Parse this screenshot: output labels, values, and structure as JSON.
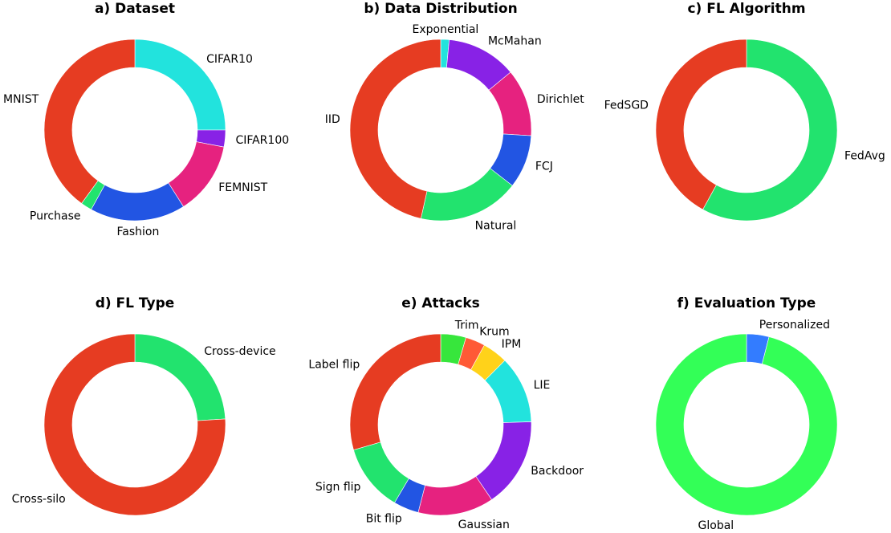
{
  "chart_data": [
    {
      "type": "pie",
      "title": "a) Dataset",
      "categories": [
        "CIFAR10",
        "CIFAR100",
        "FEMNIST",
        "Fashion",
        "Purchase",
        "MNIST"
      ],
      "values": [
        25.0,
        3.0,
        13.0,
        17.0,
        2.0,
        40.0
      ],
      "colors": [
        "#22e3dd",
        "#8822e6",
        "#e6227f",
        "#2255e3",
        "#22e36e",
        "#e63c22"
      ]
    },
    {
      "type": "pie",
      "title": "b) Data Distribution",
      "categories": [
        "Exponential",
        "McMahan",
        "Dirichlet",
        "FCJ",
        "Natural",
        "IID"
      ],
      "values": [
        1.5,
        12.5,
        12.0,
        9.5,
        18.0,
        46.5
      ],
      "colors": [
        "#22e3dd",
        "#8822e6",
        "#e6227f",
        "#2255e3",
        "#22e36e",
        "#e63c22"
      ]
    },
    {
      "type": "pie",
      "title": "c) FL Algorithm",
      "categories": [
        "FedAvg",
        "FedSGD"
      ],
      "values": [
        58.0,
        42.0
      ],
      "colors": [
        "#22e36e",
        "#e63c22"
      ]
    },
    {
      "type": "pie",
      "title": "d) FL Type",
      "categories": [
        "Cross-device",
        "Cross-silo"
      ],
      "values": [
        24.0,
        76.0
      ],
      "colors": [
        "#22e36e",
        "#e63c22"
      ]
    },
    {
      "type": "pie",
      "title": "e) Attacks",
      "categories": [
        "Trim",
        "Krum",
        "IPM",
        "LIE",
        "Backdoor",
        "Gaussian",
        "Bit flip",
        "Sign flip",
        "Label flip"
      ],
      "values": [
        4.5,
        3.5,
        4.5,
        12.0,
        16.0,
        13.5,
        4.5,
        12.0,
        29.5
      ],
      "colors": [
        "#37e63c",
        "#ff5a36",
        "#ffd21a",
        "#22e3dd",
        "#8822e6",
        "#e6227f",
        "#2255e3",
        "#22e36e",
        "#e63c22"
      ]
    },
    {
      "type": "pie",
      "title": "f) Evaluation Type",
      "categories": [
        "Personalized",
        "Global"
      ],
      "values": [
        4.0,
        96.0
      ],
      "colors": [
        "#337cff",
        "#33ff57"
      ]
    }
  ]
}
